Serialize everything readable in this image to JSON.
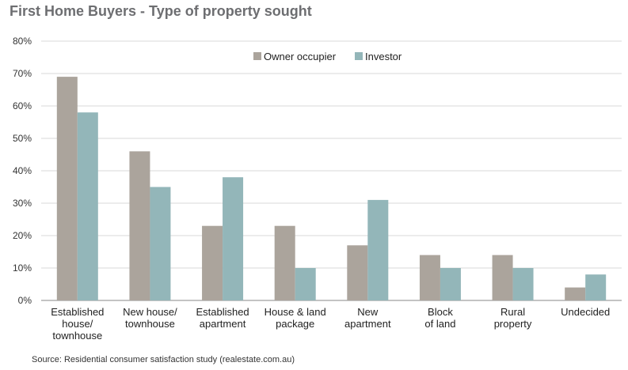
{
  "header": {
    "title": "First Home Buyers - Type of property sought"
  },
  "footer": {
    "source": "Source: Residential consumer satisfaction study (realestate.com.au)"
  },
  "chart_data": {
    "type": "bar",
    "title": "First Home Buyers - Type of property sought",
    "xlabel": "",
    "ylabel": "",
    "ylim": [
      0,
      80
    ],
    "yticks": [
      0,
      10,
      20,
      30,
      40,
      50,
      60,
      70,
      80
    ],
    "ytick_labels": [
      "0%",
      "10%",
      "20%",
      "30%",
      "40%",
      "50%",
      "60%",
      "70%",
      "80%"
    ],
    "grid": true,
    "legend_position": "top-center",
    "categories": [
      [
        "Established",
        "house/",
        "townhouse"
      ],
      [
        "New house/",
        "townhouse"
      ],
      [
        "Established",
        "apartment"
      ],
      [
        "House & land",
        "package"
      ],
      [
        "New",
        "apartment"
      ],
      [
        "Block",
        "of land"
      ],
      [
        "Rural",
        "property"
      ],
      [
        "Undecided"
      ]
    ],
    "series": [
      {
        "name": "Owner occupier",
        "color": "#aba49c",
        "values": [
          69,
          46,
          23,
          23,
          17,
          14,
          14,
          4
        ]
      },
      {
        "name": "Investor",
        "color": "#93b6b9",
        "values": [
          58,
          35,
          38,
          10,
          31,
          10,
          10,
          8
        ]
      }
    ]
  }
}
